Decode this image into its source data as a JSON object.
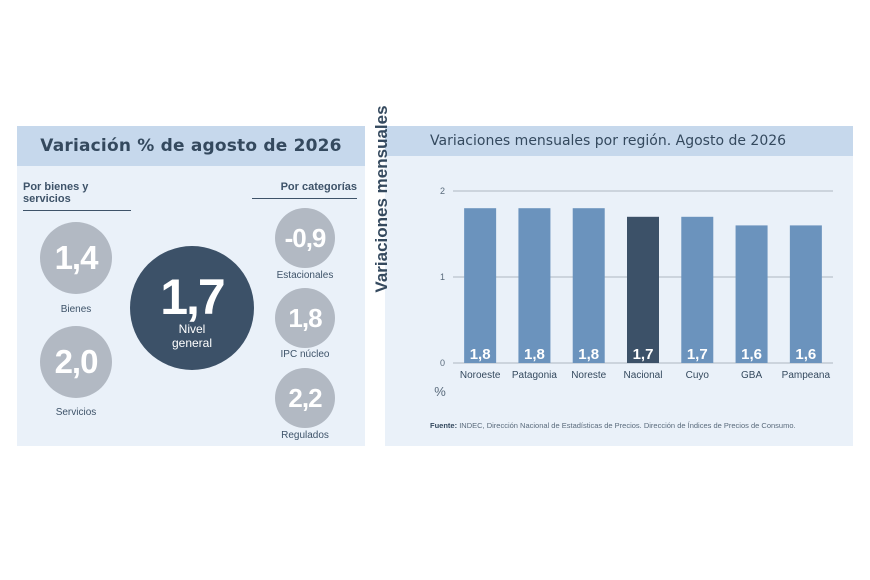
{
  "summary": {
    "title": "Variación % de agosto de 2026",
    "left_group_heading": "Por bienes y servicios",
    "right_group_heading": "Por categorías",
    "main": {
      "value": "1,7",
      "label_line1": "Nivel",
      "label_line2": "general"
    },
    "goods": {
      "value": "1,4",
      "label": "Bienes"
    },
    "services": {
      "value": "2,0",
      "label": "Servicios"
    },
    "seasonal": {
      "value": "-0,9",
      "label": "Estacionales"
    },
    "core": {
      "value": "1,8",
      "label": "IPC núcleo"
    },
    "regulated": {
      "value": "2,2",
      "label": "Regulados"
    }
  },
  "colors": {
    "bar": "#6b93bd",
    "bar_highlight": "#3c5168",
    "circle_grey": "#b2b9c3",
    "circle_main": "#3c5168"
  },
  "source": {
    "label": "Fuente:",
    "text": "INDEC, Dirección Nacional de Estadísticas de Precios. Dirección de Índices de Precios de Consumo."
  },
  "chart_data": {
    "type": "bar",
    "title": "Variaciones mensuales por región. Agosto de 2026",
    "ylabel": "Variaciones mensuales",
    "unit_label": "%",
    "categories": [
      "Noroeste",
      "Patagonia",
      "Noreste",
      "Nacional",
      "Cuyo",
      "GBA",
      "Pampeana"
    ],
    "values": [
      1.8,
      1.8,
      1.8,
      1.7,
      1.7,
      1.6,
      1.6
    ],
    "value_labels": [
      "1,8",
      "1,8",
      "1,8",
      "1,7",
      "1,7",
      "1,6",
      "1,6"
    ],
    "highlight": "Nacional",
    "ylim": [
      0,
      2
    ],
    "yticks": [
      0,
      1,
      2
    ],
    "grid": true
  }
}
